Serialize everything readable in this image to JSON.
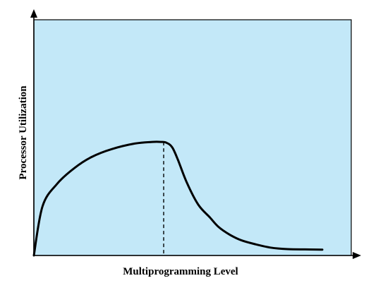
{
  "chart_data": {
    "type": "line",
    "title": "",
    "xlabel": "Multiprogramming Level",
    "ylabel": "Processor Utilization",
    "grid": false,
    "legend": "none",
    "xlim": [
      0,
      100
    ],
    "ylim": [
      0,
      100
    ],
    "series": [
      {
        "x": [
          0,
          3,
          8,
          14,
          20,
          27,
          35,
          41,
          44,
          46,
          48,
          50,
          53,
          57,
          61,
          64,
          68,
          72,
          77,
          82,
          88,
          94,
          100
        ],
        "values": [
          0,
          31,
          45,
          55,
          62,
          67,
          70.5,
          71.5,
          71.5,
          71,
          68,
          60,
          46,
          32,
          24,
          18,
          13,
          9.5,
          7,
          5,
          4,
          3.8,
          3.7
        ]
      }
    ],
    "annotations": [
      {
        "type": "vertical-dashed-line",
        "x": 45,
        "y_top": 71.5
      }
    ],
    "colors": {
      "plot_background": "#c3e8f8",
      "curve": "#000000",
      "axis": "#000000"
    }
  }
}
